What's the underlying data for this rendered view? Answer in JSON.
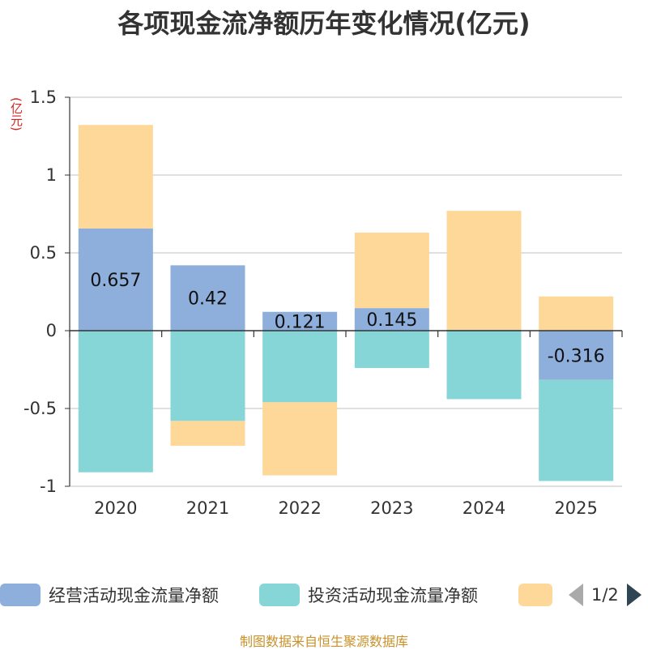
{
  "title": "各项现金流净额历年变化情况(亿元)",
  "unit_label": "(亿元)",
  "source": "制图数据来自恒生聚源数据库",
  "legend": {
    "items": [
      {
        "label": "经营活动现金流量净额",
        "color": "#8eaedc"
      },
      {
        "label": "投资活动现金流量净额",
        "color": "#86d5d7"
      },
      {
        "label": "",
        "color": "#fdd899"
      }
    ],
    "page": "1/2"
  },
  "chart_data": {
    "type": "bar",
    "stacked": true,
    "categories": [
      "2020",
      "2021",
      "2022",
      "2023",
      "2024",
      "2025"
    ],
    "ylim": [
      -1,
      1.5
    ],
    "yticks": [
      "1.5",
      "1",
      "0.5",
      "0",
      "-0.5",
      "-1"
    ],
    "ytick_values": [
      1.5,
      1,
      0.5,
      0,
      -0.5,
      -1
    ],
    "grid": true,
    "legend_position": "bottom",
    "series": [
      {
        "name": "经营活动现金流量净额",
        "color": "#8eaedc",
        "values": [
          0.657,
          0.42,
          0.121,
          0.145,
          0.005,
          -0.316
        ],
        "labels": [
          "0.657",
          "0.42",
          "0.121",
          "0.145",
          "",
          "-0.316"
        ]
      },
      {
        "name": "投资活动现金流量净额",
        "color": "#86d5d7",
        "values": [
          -0.91,
          -0.58,
          -0.46,
          -0.24,
          -0.44,
          -0.65
        ]
      },
      {
        "color": "#fdd899",
        "values": [
          0.665,
          -0.16,
          -0.47,
          0.485,
          0.765,
          0.22
        ]
      }
    ]
  }
}
